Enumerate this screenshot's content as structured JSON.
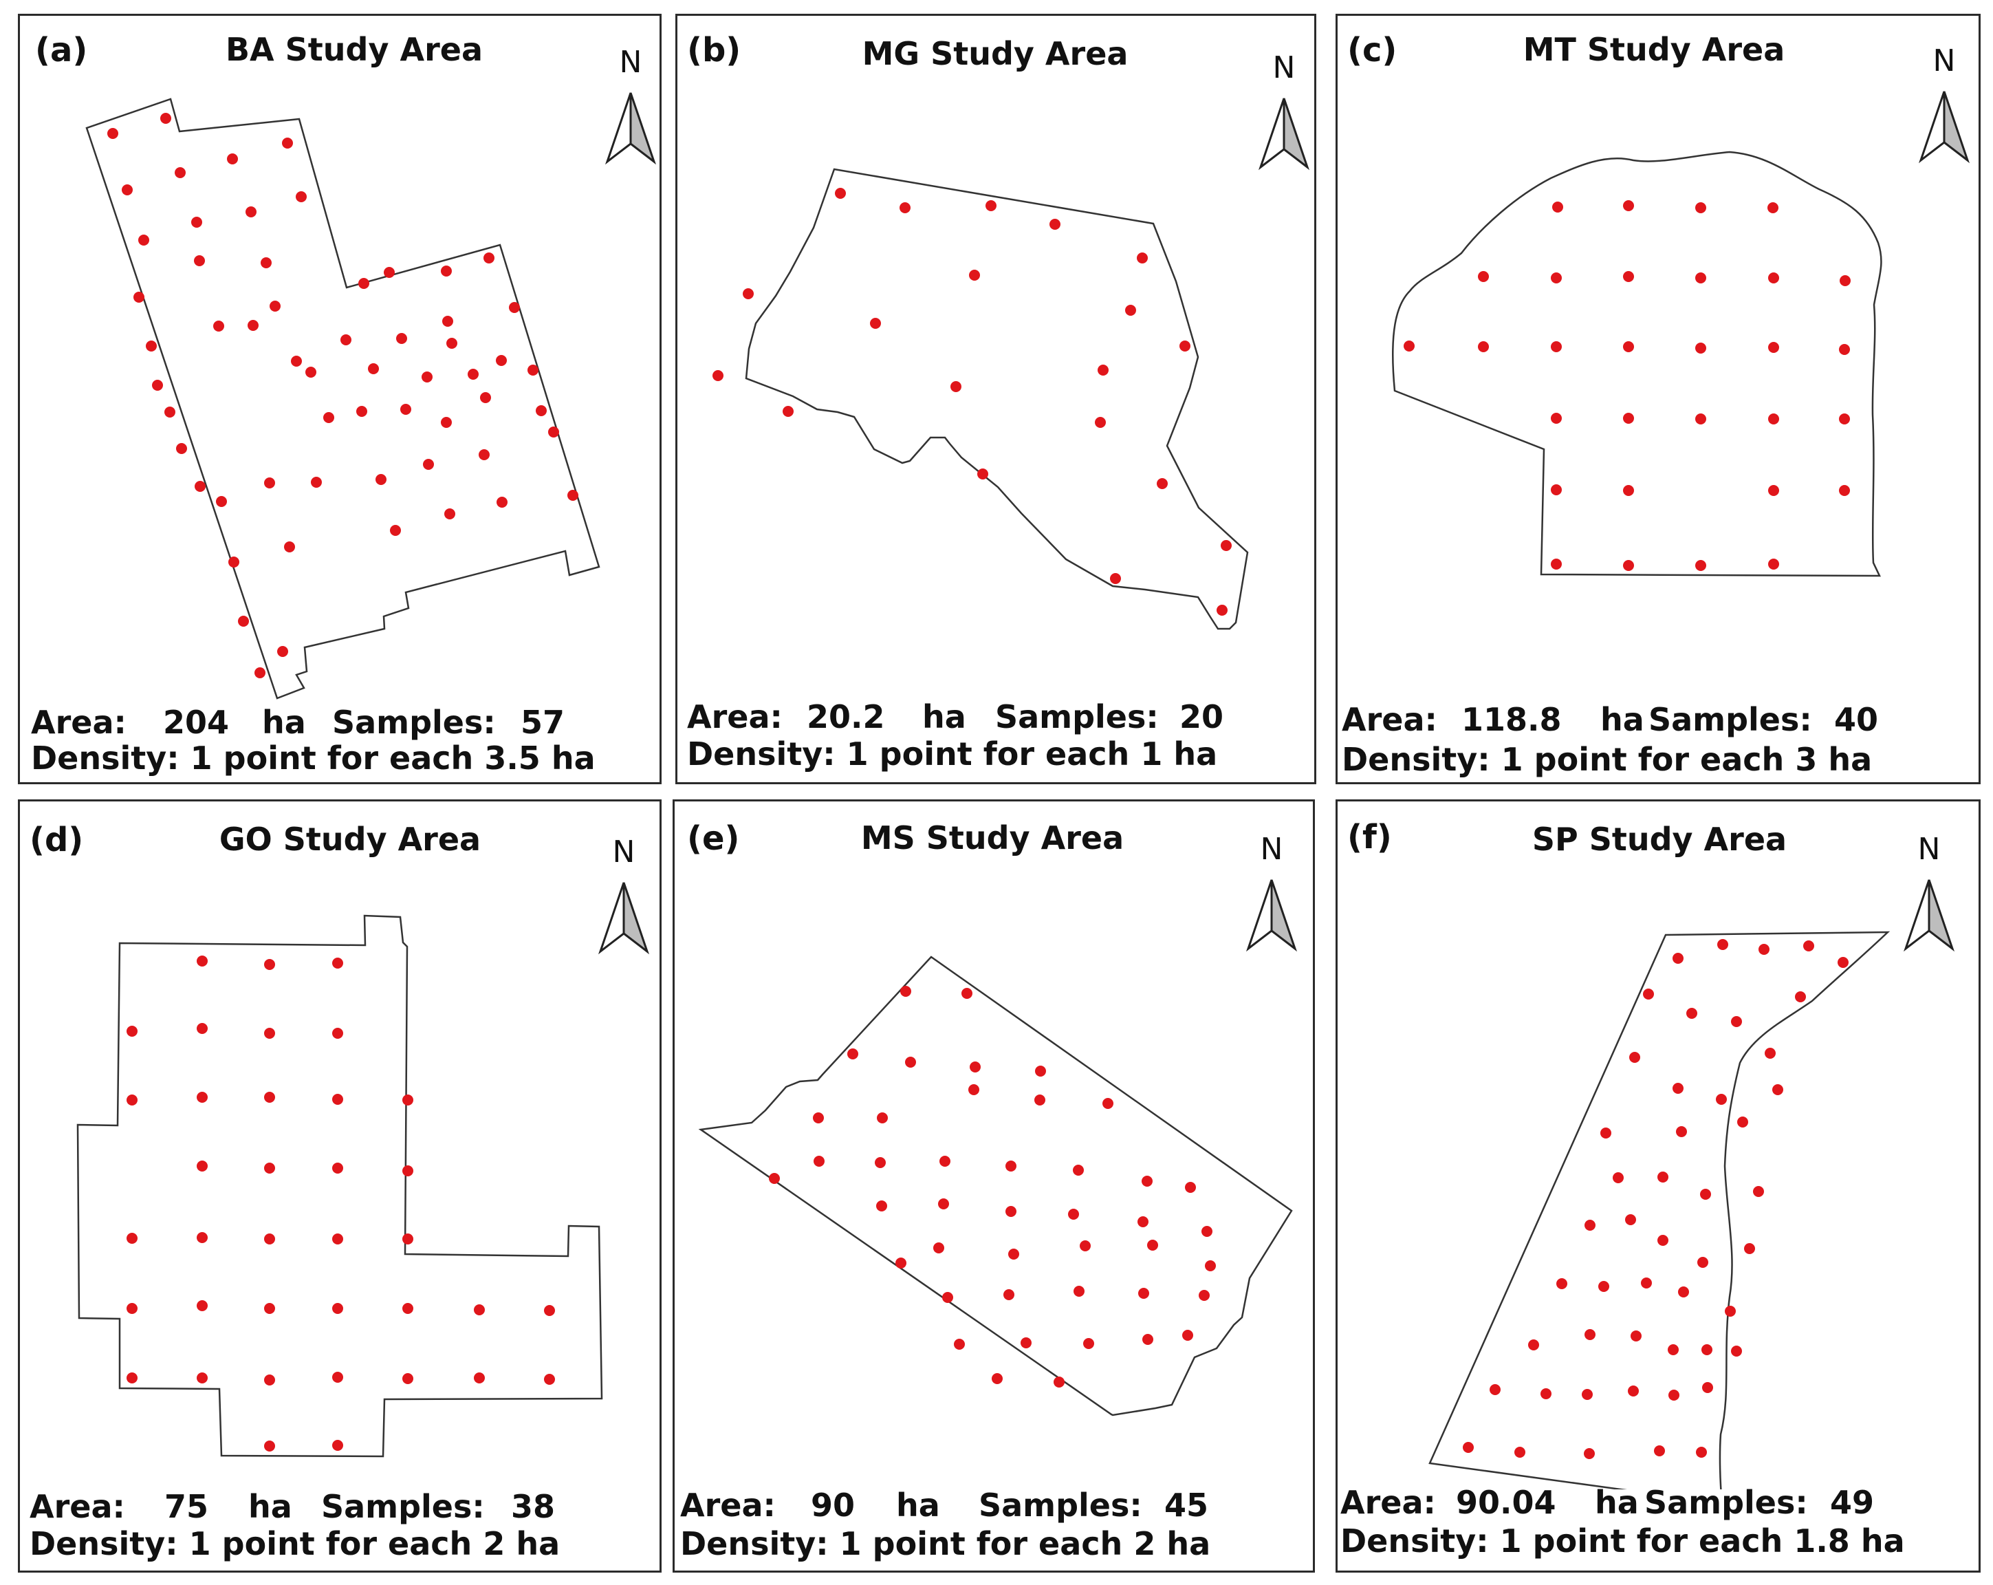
{
  "panels": [
    {
      "label": "(a)",
      "title": "BA Study Area",
      "north": "N",
      "area_label": "Area:",
      "area_value": "204",
      "area_unit": "ha",
      "samples_label": "Samples:",
      "samples_value": "57",
      "density": "Density: 1 point for each 3.5 ha"
    },
    {
      "label": "(b)",
      "title": "MG Study Area",
      "north": "N",
      "area_label": "Area:",
      "area_value": "20.2",
      "area_unit": "ha",
      "samples_label": "Samples:",
      "samples_value": "20",
      "density": "Density: 1 point for each 1 ha"
    },
    {
      "label": "(c)",
      "title": "MT Study Area",
      "north": "N",
      "area_label": "Area:",
      "area_value": "118.8",
      "area_unit": "ha",
      "samples_label": "Samples:",
      "samples_value": "40",
      "density": "Density: 1 point for each 3 ha"
    },
    {
      "label": "(d)",
      "title": "GO Study Area",
      "north": "N",
      "area_label": "Area:",
      "area_value": "75",
      "area_unit": "ha",
      "samples_label": "Samples:",
      "samples_value": "38",
      "density": "Density: 1 point for each 2 ha"
    },
    {
      "label": "(e)",
      "title": "MS Study Area",
      "north": "N",
      "area_label": "Area:",
      "area_value": "90",
      "area_unit": "ha",
      "samples_label": "Samples:",
      "samples_value": "45",
      "density": "Density: 1 point for each 2 ha"
    },
    {
      "label": "(f)",
      "title": "SP Study Area",
      "north": "N",
      "area_label": "Area:",
      "area_value": "90.04",
      "area_unit": "ha",
      "samples_label": "Samples:",
      "samples_value": "49",
      "density": "Density: 1 point for each 1.8 ha"
    }
  ],
  "colors": {
    "sample_point": "#e0161b",
    "boundary": "#333333",
    "frame": "#2b2b2b"
  },
  "icons": {
    "north_arrow": "north-arrow-icon"
  }
}
